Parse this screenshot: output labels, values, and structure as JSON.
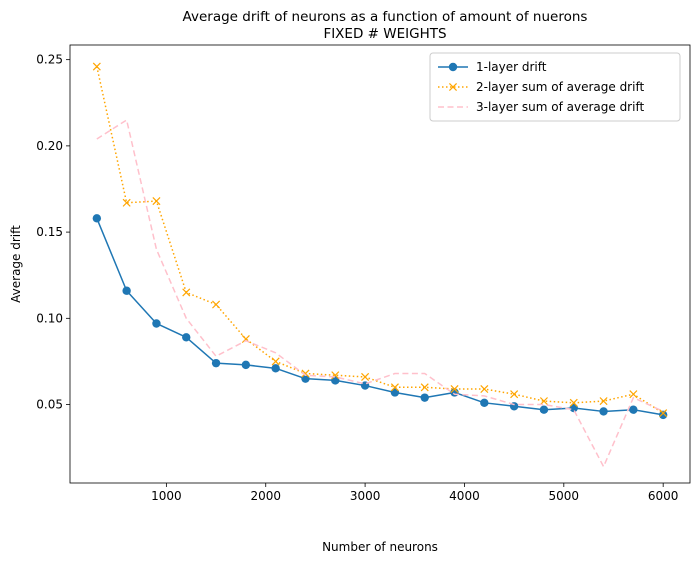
{
  "chart_data": {
    "type": "line",
    "title": "Average drift of neurons as a function of amount of nuerons",
    "subtitle": "FIXED # WEIGHTS",
    "xlabel": "Number of neurons",
    "ylabel": "Average drift",
    "xlim": [
      30,
      6270
    ],
    "ylim": [
      0.0045,
      0.2585
    ],
    "xticks": [
      1000,
      2000,
      3000,
      4000,
      5000,
      6000
    ],
    "yticks": [
      0.05,
      0.1,
      0.15,
      0.2,
      0.25
    ],
    "ytick_labels": [
      "0.05",
      "0.10",
      "0.15",
      "0.20",
      "0.25"
    ],
    "legend_position": "top-right",
    "grid": false,
    "x": [
      300,
      600,
      900,
      1200,
      1500,
      1800,
      2100,
      2400,
      2700,
      3000,
      3300,
      3600,
      3900,
      4200,
      4500,
      4800,
      5100,
      5400,
      5700,
      6000
    ],
    "series": [
      {
        "name": "1-layer drift",
        "color": "#1f77b4",
        "style": "solid",
        "marker": "circle",
        "values": [
          0.158,
          0.116,
          0.097,
          0.089,
          0.074,
          0.073,
          0.071,
          0.065,
          0.064,
          0.061,
          0.057,
          0.054,
          0.057,
          0.051,
          0.049,
          0.047,
          0.048,
          0.046,
          0.047,
          0.044
        ]
      },
      {
        "name": "2-layer sum of average drift",
        "color": "#ffa500",
        "style": "dotted",
        "marker": "x",
        "values": [
          0.246,
          0.167,
          0.168,
          0.115,
          0.108,
          0.088,
          0.075,
          0.068,
          0.067,
          0.066,
          0.06,
          0.06,
          0.059,
          0.059,
          0.056,
          0.052,
          0.051,
          0.052,
          0.056,
          0.045
        ]
      },
      {
        "name": "3-layer sum of average drift",
        "color": "#ffc0cb",
        "style": "dashed",
        "marker": "none",
        "values": [
          0.204,
          0.215,
          0.14,
          0.1,
          0.078,
          0.087,
          0.08,
          0.067,
          0.066,
          0.062,
          0.068,
          0.068,
          0.056,
          0.055,
          0.05,
          0.05,
          0.047,
          0.014,
          0.054,
          0.046
        ]
      }
    ]
  }
}
